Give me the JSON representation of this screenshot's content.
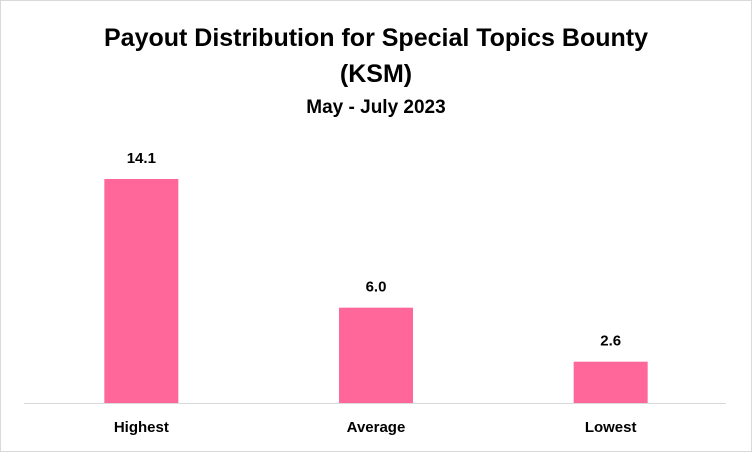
{
  "chart_data": {
    "type": "bar",
    "title": "Payout Distribution for Special Topics Bounty (KSM)",
    "subtitle": "May - July 2023",
    "categories": [
      "Highest",
      "Average",
      "Lowest"
    ],
    "values": [
      14.1,
      6.0,
      2.6
    ],
    "value_labels": [
      "14.1",
      "6.0",
      "2.6"
    ],
    "color": "#ff6699"
  }
}
